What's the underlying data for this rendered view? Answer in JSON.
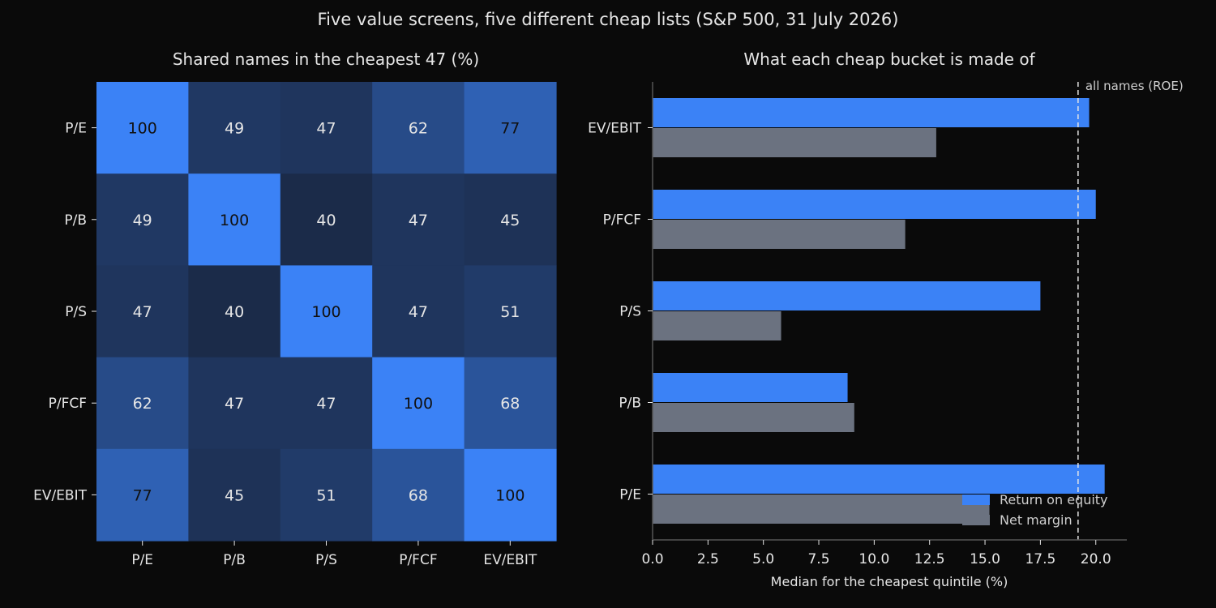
{
  "figure_title": "Five value screens, five different cheap lists (S&P 500, 31 July 2026)",
  "colors": {
    "background": "#0a0a0a",
    "text": "#e6e6e6",
    "heat_low": "#1b2b49",
    "heat_high": "#3b82f6",
    "roe_bar": "#3b82f6",
    "margin_bar": "#6b7280",
    "axis": "#555555",
    "reference_line": "#e6e6e6"
  },
  "chart_data": [
    {
      "type": "heatmap",
      "title": "Shared names in the cheapest 47 (%)",
      "xlabel": "",
      "ylabel": "",
      "x_categories": [
        "P/E",
        "P/B",
        "P/S",
        "P/FCF",
        "EV/EBIT"
      ],
      "y_categories": [
        "P/E",
        "P/B",
        "P/S",
        "P/FCF",
        "EV/EBIT"
      ],
      "values": [
        [
          100,
          49,
          47,
          62,
          77
        ],
        [
          49,
          100,
          40,
          47,
          45
        ],
        [
          47,
          40,
          100,
          47,
          51
        ],
        [
          62,
          47,
          47,
          100,
          68
        ],
        [
          77,
          45,
          51,
          68,
          100
        ]
      ],
      "value_range": [
        40,
        100
      ],
      "cell_labels": true,
      "grid": false
    },
    {
      "type": "bar",
      "orientation": "horizontal",
      "title": "What each cheap bucket is made of",
      "xlabel": "Median for the cheapest quintile (%)",
      "ylabel": "",
      "categories": [
        "P/E",
        "P/B",
        "P/S",
        "P/FCF",
        "EV/EBIT"
      ],
      "series": [
        {
          "name": "Return on equity",
          "values": [
            20.4,
            8.8,
            17.5,
            20.0,
            19.7
          ]
        },
        {
          "name": "Net margin",
          "values": [
            15.2,
            9.1,
            5.8,
            11.4,
            12.8
          ]
        }
      ],
      "xlim": [
        0,
        21.4
      ],
      "xticks": [
        0,
        2.5,
        5,
        7.5,
        10,
        12.5,
        15,
        17.5,
        20
      ],
      "xtick_labels": [
        "0.0",
        "2.5",
        "5.0",
        "7.5",
        "10.0",
        "12.5",
        "15.0",
        "17.5",
        "20.0"
      ],
      "reference_line": {
        "value": 19.2,
        "label": "all names (ROE)"
      },
      "legend_position": "bottom-right",
      "grid": false
    }
  ]
}
